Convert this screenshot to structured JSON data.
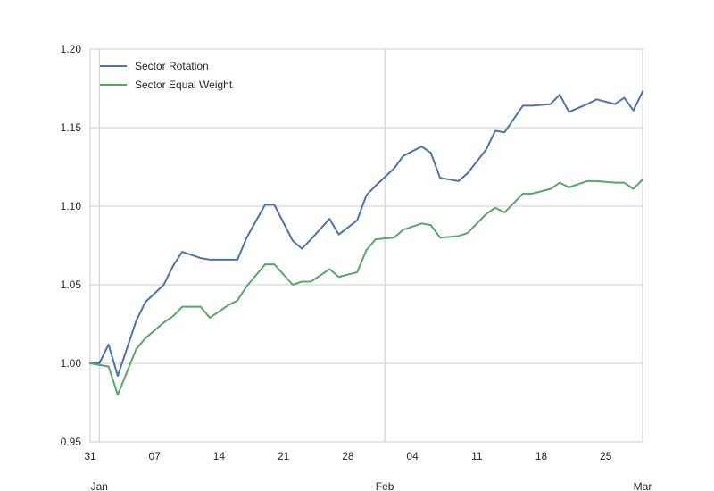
{
  "chart_data": {
    "type": "line",
    "title": "",
    "xlabel": "",
    "ylabel": "",
    "ylim": [
      0.95,
      1.2
    ],
    "yticks": [
      {
        "value": 0.95,
        "label": "0.95"
      },
      {
        "value": 1.0,
        "label": "1.00"
      },
      {
        "value": 1.05,
        "label": "1.05"
      },
      {
        "value": 1.1,
        "label": "1.10"
      },
      {
        "value": 1.15,
        "label": "1.15"
      },
      {
        "value": 1.2,
        "label": "1.20"
      }
    ],
    "xlim": [
      "2006-12-31",
      "2007-03-01"
    ],
    "minor_xticks": [
      {
        "date": "2006-12-31",
        "label": "31"
      },
      {
        "date": "2007-01-07",
        "label": "07"
      },
      {
        "date": "2007-01-14",
        "label": "14"
      },
      {
        "date": "2007-01-21",
        "label": "21"
      },
      {
        "date": "2007-01-28",
        "label": "28"
      },
      {
        "date": "2007-02-04",
        "label": "04"
      },
      {
        "date": "2007-02-11",
        "label": "11"
      },
      {
        "date": "2007-02-18",
        "label": "18"
      },
      {
        "date": "2007-02-25",
        "label": "25"
      }
    ],
    "major_xticks": [
      {
        "date": "2007-01-01",
        "label": "Jan"
      },
      {
        "date": "2007-02-01",
        "label": "Feb"
      },
      {
        "date": "2007-03-01",
        "label": "Mar"
      }
    ],
    "grid": true,
    "legend": "top-left",
    "x": [
      "2006-12-31",
      "2007-01-01",
      "2007-01-02",
      "2007-01-03",
      "2007-01-05",
      "2007-01-06",
      "2007-01-08",
      "2007-01-09",
      "2007-01-10",
      "2007-01-12",
      "2007-01-13",
      "2007-01-15",
      "2007-01-16",
      "2007-01-17",
      "2007-01-19",
      "2007-01-20",
      "2007-01-22",
      "2007-01-23",
      "2007-01-24",
      "2007-01-26",
      "2007-01-27",
      "2007-01-29",
      "2007-01-30",
      "2007-01-31",
      "2007-02-02",
      "2007-02-03",
      "2007-02-05",
      "2007-02-06",
      "2007-02-07",
      "2007-02-09",
      "2007-02-10",
      "2007-02-12",
      "2007-02-13",
      "2007-02-14",
      "2007-02-16",
      "2007-02-17",
      "2007-02-19",
      "2007-02-20",
      "2007-02-21",
      "2007-02-23",
      "2007-02-24",
      "2007-02-26",
      "2007-02-27",
      "2007-02-28",
      "2007-03-01"
    ],
    "series": [
      {
        "name": "Sector Rotation",
        "color": "#4c72b0",
        "values": [
          1.0,
          1.0,
          1.012,
          0.992,
          1.027,
          1.039,
          1.05,
          1.062,
          1.071,
          1.067,
          1.066,
          1.066,
          1.066,
          1.08,
          1.101,
          1.101,
          1.078,
          1.073,
          1.079,
          1.092,
          1.082,
          1.091,
          1.107,
          1.113,
          1.124,
          1.132,
          1.138,
          1.134,
          1.118,
          1.116,
          1.121,
          1.136,
          1.148,
          1.147,
          1.164,
          1.164,
          1.165,
          1.171,
          1.16,
          1.165,
          1.168,
          1.165,
          1.169,
          1.161,
          1.173
        ]
      },
      {
        "name": "Sector Equal Weight",
        "color": "#55a868",
        "values": [
          1.0,
          0.999,
          0.998,
          0.98,
          1.009,
          1.016,
          1.026,
          1.03,
          1.036,
          1.036,
          1.029,
          1.037,
          1.04,
          1.049,
          1.063,
          1.063,
          1.05,
          1.052,
          1.052,
          1.06,
          1.055,
          1.058,
          1.072,
          1.079,
          1.08,
          1.085,
          1.089,
          1.088,
          1.08,
          1.081,
          1.083,
          1.095,
          1.099,
          1.096,
          1.108,
          1.108,
          1.111,
          1.115,
          1.112,
          1.116,
          1.116,
          1.115,
          1.115,
          1.111,
          1.117
        ]
      }
    ]
  }
}
